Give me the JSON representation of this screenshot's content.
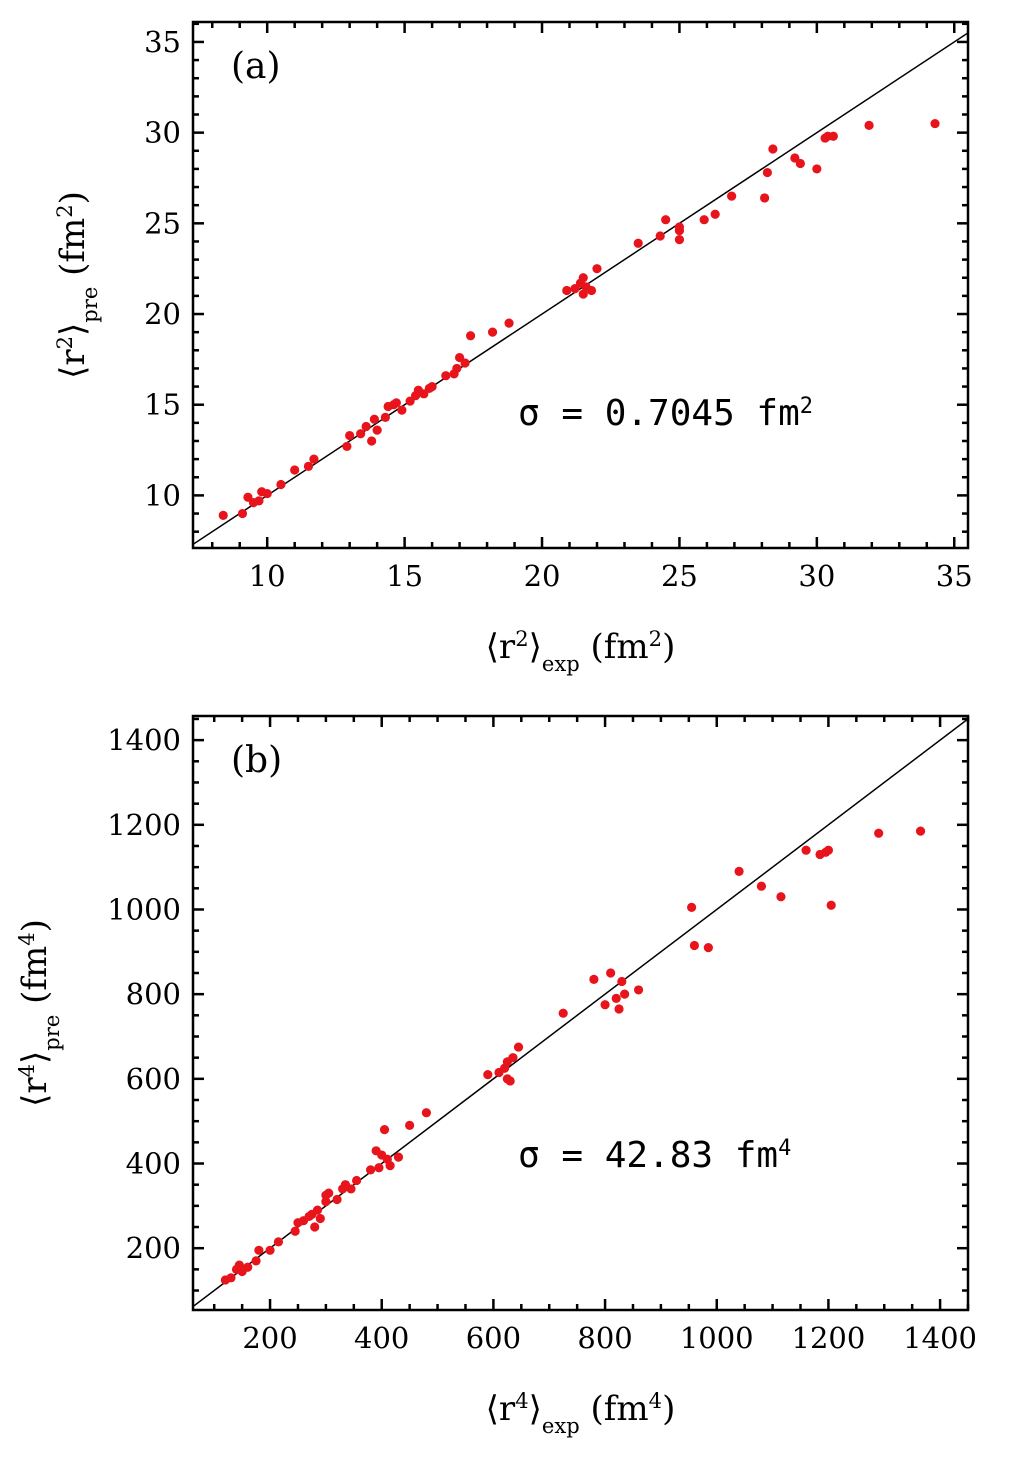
{
  "chart_data": [
    {
      "type": "scatter",
      "panel_label": "(a)",
      "annotation": {
        "text": "σ = 0.7045 fm",
        "sup": "2"
      },
      "xlabel": {
        "parts": [
          [
            "⟨r",
            ""
          ],
          [
            "2",
            "sup"
          ],
          [
            "⟩",
            ""
          ],
          [
            "exp",
            "sub"
          ],
          [
            "  (fm",
            ""
          ],
          [
            "2",
            "sup"
          ],
          [
            ")",
            ""
          ]
        ]
      },
      "ylabel": {
        "parts": [
          [
            "⟨r",
            ""
          ],
          [
            "2",
            "sup"
          ],
          [
            "⟩",
            ""
          ],
          [
            "pre",
            "sub"
          ],
          [
            "  (fm",
            ""
          ],
          [
            "2",
            "sup"
          ],
          [
            ")",
            ""
          ]
        ]
      },
      "xlim": [
        7.3,
        35.5
      ],
      "ylim": [
        7.1,
        36.1
      ],
      "xticks": [
        10,
        15,
        20,
        25,
        30,
        35
      ],
      "yticks": [
        10,
        15,
        20,
        25,
        30,
        35
      ],
      "minor_step": 1,
      "reference_line": "y = x",
      "grid": false,
      "marker_color": "#e8141c",
      "points": [
        [
          8.4,
          8.9
        ],
        [
          9.1,
          9.0
        ],
        [
          9.3,
          9.9
        ],
        [
          9.5,
          9.6
        ],
        [
          9.7,
          9.7
        ],
        [
          9.8,
          10.2
        ],
        [
          10.0,
          10.1
        ],
        [
          10.5,
          10.6
        ],
        [
          11.0,
          11.4
        ],
        [
          11.5,
          11.6
        ],
        [
          11.7,
          12.0
        ],
        [
          12.9,
          12.7
        ],
        [
          13.0,
          13.3
        ],
        [
          13.4,
          13.4
        ],
        [
          13.6,
          13.8
        ],
        [
          13.8,
          13.0
        ],
        [
          13.9,
          14.2
        ],
        [
          14.0,
          13.6
        ],
        [
          14.3,
          14.3
        ],
        [
          14.4,
          14.9
        ],
        [
          14.6,
          15.0
        ],
        [
          14.7,
          15.1
        ],
        [
          14.9,
          14.7
        ],
        [
          15.2,
          15.2
        ],
        [
          15.4,
          15.5
        ],
        [
          15.5,
          15.8
        ],
        [
          15.7,
          15.6
        ],
        [
          15.9,
          15.9
        ],
        [
          16.0,
          16.0
        ],
        [
          16.5,
          16.6
        ],
        [
          16.8,
          16.7
        ],
        [
          16.9,
          17.0
        ],
        [
          17.0,
          17.6
        ],
        [
          17.2,
          17.3
        ],
        [
          17.4,
          18.8
        ],
        [
          18.2,
          19.0
        ],
        [
          18.8,
          19.5
        ],
        [
          20.9,
          21.3
        ],
        [
          21.2,
          21.4
        ],
        [
          21.4,
          21.7
        ],
        [
          21.5,
          22.0
        ],
        [
          21.5,
          21.1
        ],
        [
          21.6,
          21.5
        ],
        [
          21.8,
          21.3
        ],
        [
          22.0,
          22.5
        ],
        [
          23.5,
          23.9
        ],
        [
          24.3,
          24.3
        ],
        [
          24.5,
          25.2
        ],
        [
          25.0,
          24.1
        ],
        [
          25.0,
          24.6
        ],
        [
          25.0,
          24.8
        ],
        [
          25.9,
          25.2
        ],
        [
          26.3,
          25.5
        ],
        [
          26.9,
          26.5
        ],
        [
          28.1,
          26.4
        ],
        [
          28.2,
          27.8
        ],
        [
          28.4,
          29.1
        ],
        [
          29.2,
          28.6
        ],
        [
          29.4,
          28.3
        ],
        [
          30.0,
          28.0
        ],
        [
          30.3,
          29.7
        ],
        [
          30.4,
          29.8
        ],
        [
          30.6,
          29.8
        ],
        [
          31.9,
          30.4
        ],
        [
          34.3,
          30.5
        ]
      ]
    },
    {
      "type": "scatter",
      "panel_label": "(b)",
      "annotation": {
        "text": "σ = 42.83 fm",
        "sup": "4"
      },
      "xlabel": {
        "parts": [
          [
            "⟨r",
            ""
          ],
          [
            "4",
            "sup"
          ],
          [
            "⟩",
            ""
          ],
          [
            "exp",
            "sub"
          ],
          [
            "  (fm",
            ""
          ],
          [
            "4",
            "sup"
          ],
          [
            ")",
            ""
          ]
        ]
      },
      "ylabel": {
        "parts": [
          [
            "⟨r",
            ""
          ],
          [
            "4",
            "sup"
          ],
          [
            "⟩",
            ""
          ],
          [
            "pre",
            "sub"
          ],
          [
            "  (fm",
            ""
          ],
          [
            "4",
            "sup"
          ],
          [
            ")",
            ""
          ]
        ]
      },
      "xlim": [
        62,
        1450
      ],
      "ylim": [
        54,
        1457
      ],
      "xticks": [
        200,
        400,
        600,
        800,
        1000,
        1200,
        1400
      ],
      "yticks": [
        200,
        400,
        600,
        800,
        1000,
        1200,
        1400
      ],
      "minor_step": 50,
      "reference_line": "y = x",
      "grid": false,
      "marker_color": "#e8141c",
      "points": [
        [
          120,
          125
        ],
        [
          130,
          130
        ],
        [
          140,
          150
        ],
        [
          145,
          160
        ],
        [
          150,
          145
        ],
        [
          160,
          155
        ],
        [
          175,
          170
        ],
        [
          180,
          195
        ],
        [
          200,
          195
        ],
        [
          215,
          215
        ],
        [
          245,
          240
        ],
        [
          250,
          260
        ],
        [
          260,
          265
        ],
        [
          270,
          275
        ],
        [
          275,
          280
        ],
        [
          280,
          250
        ],
        [
          285,
          290
        ],
        [
          290,
          270
        ],
        [
          300,
          310
        ],
        [
          300,
          325
        ],
        [
          305,
          330
        ],
        [
          320,
          315
        ],
        [
          330,
          340
        ],
        [
          335,
          350
        ],
        [
          345,
          340
        ],
        [
          355,
          360
        ],
        [
          380,
          385
        ],
        [
          390,
          430
        ],
        [
          395,
          390
        ],
        [
          400,
          420
        ],
        [
          405,
          480
        ],
        [
          410,
          410
        ],
        [
          415,
          395
        ],
        [
          430,
          415
        ],
        [
          450,
          490
        ],
        [
          480,
          520
        ],
        [
          590,
          610
        ],
        [
          610,
          615
        ],
        [
          620,
          625
        ],
        [
          625,
          640
        ],
        [
          625,
          600
        ],
        [
          630,
          595
        ],
        [
          635,
          650
        ],
        [
          645,
          675
        ],
        [
          725,
          755
        ],
        [
          780,
          835
        ],
        [
          800,
          775
        ],
        [
          810,
          850
        ],
        [
          820,
          790
        ],
        [
          825,
          765
        ],
        [
          830,
          830
        ],
        [
          835,
          800
        ],
        [
          860,
          810
        ],
        [
          955,
          1005
        ],
        [
          960,
          915
        ],
        [
          985,
          910
        ],
        [
          1040,
          1090
        ],
        [
          1080,
          1055
        ],
        [
          1115,
          1030
        ],
        [
          1160,
          1140
        ],
        [
          1185,
          1130
        ],
        [
          1195,
          1135
        ],
        [
          1200,
          1140
        ],
        [
          1205,
          1010
        ],
        [
          1290,
          1180
        ],
        [
          1365,
          1185
        ]
      ]
    }
  ]
}
